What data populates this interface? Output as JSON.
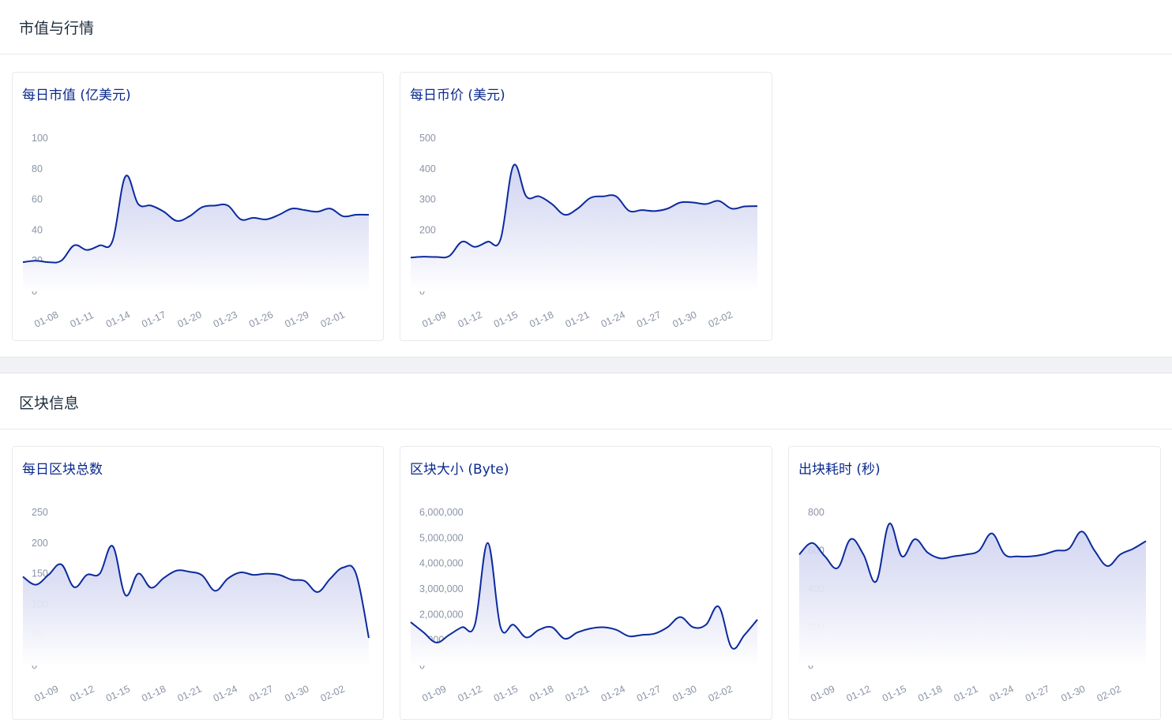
{
  "sections": [
    {
      "title": "市值与行情"
    },
    {
      "title": "区块信息"
    }
  ],
  "colors": {
    "line": "#0b2a9e",
    "fill_top": "#c9cdee",
    "fill_bottom": "#ffffff",
    "tick": "#8a93a6",
    "title": "#0b2a8f"
  },
  "chart_data": [
    {
      "id": "market-cap",
      "type": "area",
      "title": "每日市值 (亿美元)",
      "y_ticks": [
        "0",
        "20",
        "40",
        "60",
        "80",
        "100"
      ],
      "ylim": [
        0,
        100
      ],
      "x_ticks": [
        "01-08",
        "01-11",
        "01-14",
        "01-17",
        "01-20",
        "01-23",
        "01-26",
        "01-29",
        "02-01"
      ],
      "values": [
        19,
        20,
        19,
        20,
        30,
        27,
        30,
        33,
        75,
        57,
        56,
        52,
        46,
        49,
        55,
        56,
        56,
        47,
        48,
        47,
        50,
        54,
        53,
        52,
        54,
        49,
        50,
        50
      ]
    },
    {
      "id": "daily-price",
      "type": "area",
      "title": "每日币价 (美元)",
      "y_ticks": [
        "0",
        "100",
        "200",
        "300",
        "400",
        "500"
      ],
      "ylim": [
        0,
        500
      ],
      "x_ticks": [
        "01-09",
        "01-12",
        "01-15",
        "01-18",
        "01-21",
        "01-24",
        "01-27",
        "01-30",
        "02-02"
      ],
      "values": [
        110,
        113,
        112,
        115,
        162,
        145,
        162,
        170,
        410,
        310,
        310,
        285,
        250,
        270,
        305,
        310,
        310,
        263,
        265,
        262,
        270,
        290,
        290,
        285,
        295,
        270,
        277,
        278
      ]
    },
    {
      "id": "daily-blocks",
      "type": "area",
      "title": "每日区块总数",
      "y_ticks": [
        "0",
        "50",
        "100",
        "150",
        "200",
        "250"
      ],
      "ylim": [
        0,
        250
      ],
      "x_ticks": [
        "01-09",
        "01-12",
        "01-15",
        "01-18",
        "01-21",
        "01-24",
        "01-27",
        "01-30",
        "02-02"
      ],
      "values": [
        145,
        132,
        148,
        165,
        128,
        148,
        150,
        195,
        115,
        150,
        127,
        143,
        155,
        153,
        147,
        122,
        142,
        152,
        148,
        150,
        148,
        140,
        138,
        120,
        142,
        160,
        150,
        45
      ]
    },
    {
      "id": "block-size",
      "type": "area",
      "title": "区块大小 (Byte)",
      "y_ticks": [
        "0",
        "1,000,000",
        "2,000,000",
        "3,000,000",
        "4,000,000",
        "5,000,000",
        "6,000,000"
      ],
      "ylim": [
        0,
        6000000
      ],
      "x_ticks": [
        "01-09",
        "01-12",
        "01-15",
        "01-18",
        "01-21",
        "01-24",
        "01-27",
        "01-30",
        "02-02"
      ],
      "values": [
        1700000,
        1300000,
        900000,
        1200000,
        1500000,
        1600000,
        4800000,
        1500000,
        1600000,
        1100000,
        1400000,
        1500000,
        1050000,
        1300000,
        1450000,
        1500000,
        1400000,
        1150000,
        1200000,
        1250000,
        1500000,
        1900000,
        1500000,
        1600000,
        2300000,
        700000,
        1200000,
        1800000
      ]
    },
    {
      "id": "block-time",
      "type": "area",
      "title": "出块耗时 (秒)",
      "y_ticks": [
        "0",
        "200",
        "400",
        "600",
        "800"
      ],
      "ylim": [
        0,
        800
      ],
      "x_ticks": [
        "01-09",
        "01-12",
        "01-15",
        "01-18",
        "01-21",
        "01-24",
        "01-27",
        "01-30",
        "02-02"
      ],
      "values": [
        580,
        640,
        570,
        510,
        660,
        580,
        440,
        740,
        570,
        660,
        590,
        560,
        570,
        580,
        600,
        690,
        580,
        570,
        570,
        580,
        600,
        610,
        700,
        600,
        520,
        580,
        610,
        650
      ]
    }
  ]
}
